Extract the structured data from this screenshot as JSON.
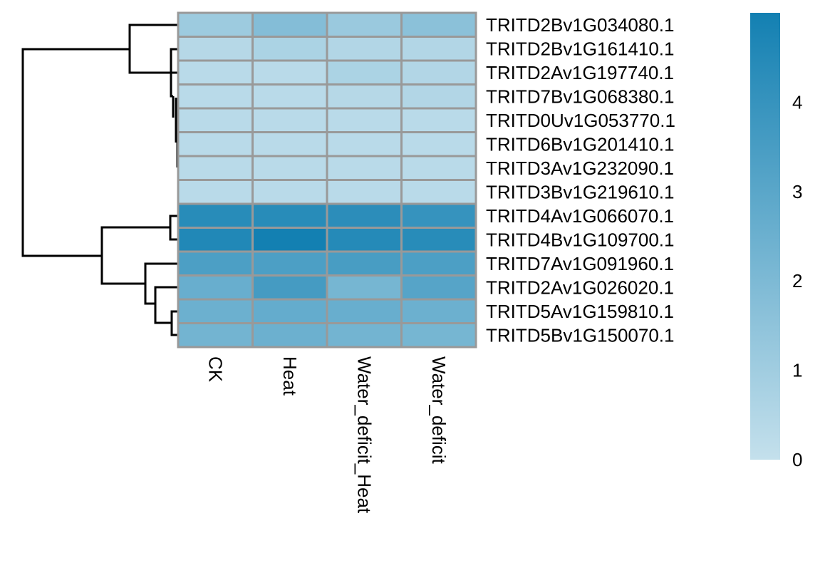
{
  "chart_data": {
    "type": "heatmap",
    "title": "",
    "columns": [
      "CK",
      "Heat",
      "Water_deficit_Heat",
      "Water_deficit"
    ],
    "rows": [
      "TRITD2Bv1G034080.1",
      "TRITD2Bv1G161410.1",
      "TRITD2Av1G197740.1",
      "TRITD7Bv1G068380.1",
      "TRITD0Uv1G053770.1",
      "TRITD6Bv1G201410.1",
      "TRITD3Av1G232090.1",
      "TRITD3Bv1G219610.1",
      "TRITD4Av1G066070.1",
      "TRITD4Bv1G109700.1",
      "TRITD7Av1G091960.1",
      "TRITD2Av1G026020.1",
      "TRITD5Av1G159810.1",
      "TRITD5Bv1G150070.1"
    ],
    "values": [
      [
        1.1,
        1.8,
        1.2,
        1.6
      ],
      [
        0.4,
        0.7,
        0.5,
        0.5
      ],
      [
        0.3,
        0.3,
        0.7,
        0.5
      ],
      [
        0.3,
        0.3,
        0.4,
        0.5
      ],
      [
        0.3,
        0.3,
        0.3,
        0.3
      ],
      [
        0.3,
        0.3,
        0.3,
        0.3
      ],
      [
        0.3,
        0.3,
        0.3,
        0.3
      ],
      [
        0.3,
        0.3,
        0.3,
        0.3
      ],
      [
        4.4,
        4.4,
        4.3,
        4.0
      ],
      [
        4.6,
        5.0,
        4.5,
        4.4
      ],
      [
        3.4,
        3.4,
        3.5,
        3.4
      ],
      [
        2.6,
        3.6,
        2.2,
        3.1
      ],
      [
        2.5,
        2.7,
        2.6,
        2.5
      ],
      [
        2.3,
        2.5,
        2.3,
        2.2
      ]
    ],
    "color_scale": {
      "min": 0,
      "max": 5,
      "low_color": "#c4e0ec",
      "high_color": "#1380b2"
    },
    "legend": {
      "ticks": [
        "0",
        "1",
        "2",
        "3",
        "4"
      ],
      "tick_values": [
        0,
        1,
        2,
        3,
        4
      ],
      "placement": "right"
    },
    "cell_border_color": "#999999",
    "row_dendrogram": true
  }
}
